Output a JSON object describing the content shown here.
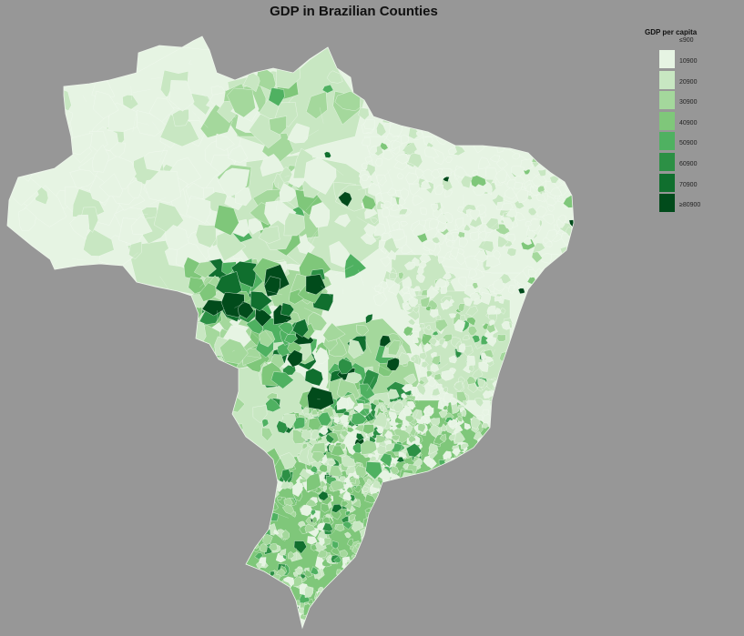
{
  "title": "GDP in Brazilian Counties",
  "legend": {
    "title": "GDP per capita",
    "first_label": "≤900",
    "items": [
      {
        "label": "10900",
        "color": "#e6f4e3"
      },
      {
        "label": "20900",
        "color": "#c8e7c2"
      },
      {
        "label": "30900",
        "color": "#a4d89c"
      },
      {
        "label": "40900",
        "color": "#7fc77a"
      },
      {
        "label": "50900",
        "color": "#4fb161"
      },
      {
        "label": "60900",
        "color": "#2c9045"
      },
      {
        "label": "70900",
        "color": "#106f2e"
      },
      {
        "label": "≥80900",
        "color": "#014b1b"
      }
    ]
  },
  "colors": {
    "background": "#979797",
    "border": "#f4fbf2"
  }
}
